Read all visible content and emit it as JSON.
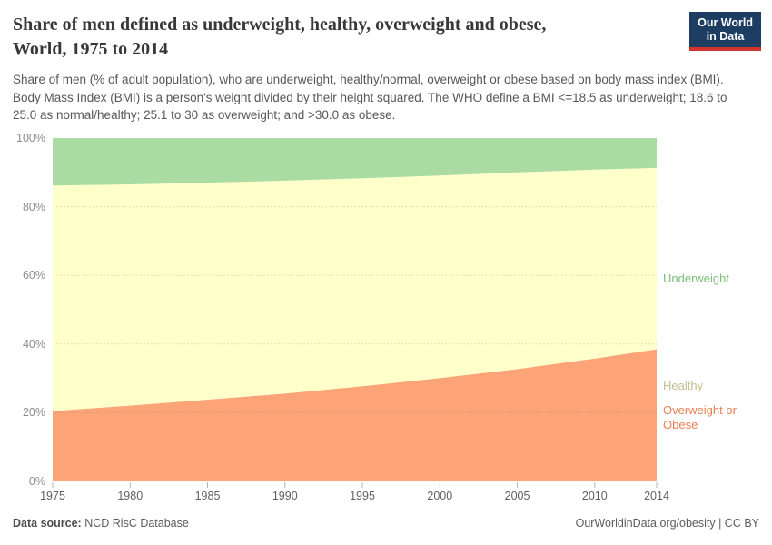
{
  "header": {
    "title_line1": "Share of men defined as underweight, healthy, overweight and obese,",
    "title_line2": "World, 1975 to 2014",
    "subtitle": "Share of men (% of adult population), who are underweight, healthy/normal, overweight or obese based on body mass index (BMI). Body Mass Index (BMI) is a person's weight divided by their height squared. The WHO define a BMI <=18.5 as underweight; 18.6 to 25.0 as normal/healthy; 25.1 to 30 as overweight; and >30.0 as obese.",
    "logo_line1": "Our World",
    "logo_line2": "in Data",
    "logo_bg_color": "#1d3d63",
    "logo_bar_color": "#d0342c"
  },
  "chart_data": {
    "type": "area",
    "stacked": true,
    "x": [
      1975,
      1980,
      1985,
      1990,
      1995,
      2000,
      2005,
      2010,
      2014
    ],
    "series": [
      {
        "name": "Overweight or Obese",
        "color": "#fca478",
        "values": [
          20.5,
          22.1,
          23.8,
          25.6,
          27.7,
          30.1,
          32.7,
          35.8,
          38.5
        ]
      },
      {
        "name": "Healthy",
        "color": "#feffc9",
        "values": [
          65.7,
          64.4,
          63.2,
          62.0,
          60.6,
          59.0,
          57.3,
          55.0,
          52.8
        ]
      },
      {
        "name": "Underweight",
        "color": "#a9dba2",
        "values": [
          13.8,
          13.5,
          13.0,
          12.4,
          11.7,
          10.9,
          10.0,
          9.2,
          8.7
        ]
      }
    ],
    "xlim": [
      1975,
      2014
    ],
    "ylim": [
      0,
      100
    ],
    "xticks": [
      {
        "label": "1975",
        "value": 1975
      },
      {
        "label": "1980",
        "value": 1980
      },
      {
        "label": "1985",
        "value": 1985
      },
      {
        "label": "1990",
        "value": 1990
      },
      {
        "label": "1995",
        "value": 1995
      },
      {
        "label": "2000",
        "value": 2000
      },
      {
        "label": "2005",
        "value": 2005
      },
      {
        "label": "2010",
        "value": 2010
      },
      {
        "label": "2014",
        "value": 2014
      }
    ],
    "yticks": [
      {
        "label": "0%",
        "value": 0
      },
      {
        "label": "20%",
        "value": 20
      },
      {
        "label": "40%",
        "value": 40
      },
      {
        "label": "60%",
        "value": 60
      },
      {
        "label": "80%",
        "value": 80
      },
      {
        "label": "100%",
        "value": 100
      }
    ],
    "grid": true,
    "legend_position": "right",
    "title": "Share of men defined as underweight, healthy, overweight and obese, World, 1975 to 2014"
  },
  "legend": [
    {
      "label": "Underweight",
      "color": "#7dbd79"
    },
    {
      "label": "Healthy",
      "color": "#c3c08f"
    },
    {
      "label": "Overweight or Obese",
      "color": "#ec7e52"
    }
  ],
  "footer": {
    "source_label": "Data source:",
    "source_value": " NCD RisC Database",
    "right_text": "OurWorldinData.org/obesity | CC BY"
  }
}
